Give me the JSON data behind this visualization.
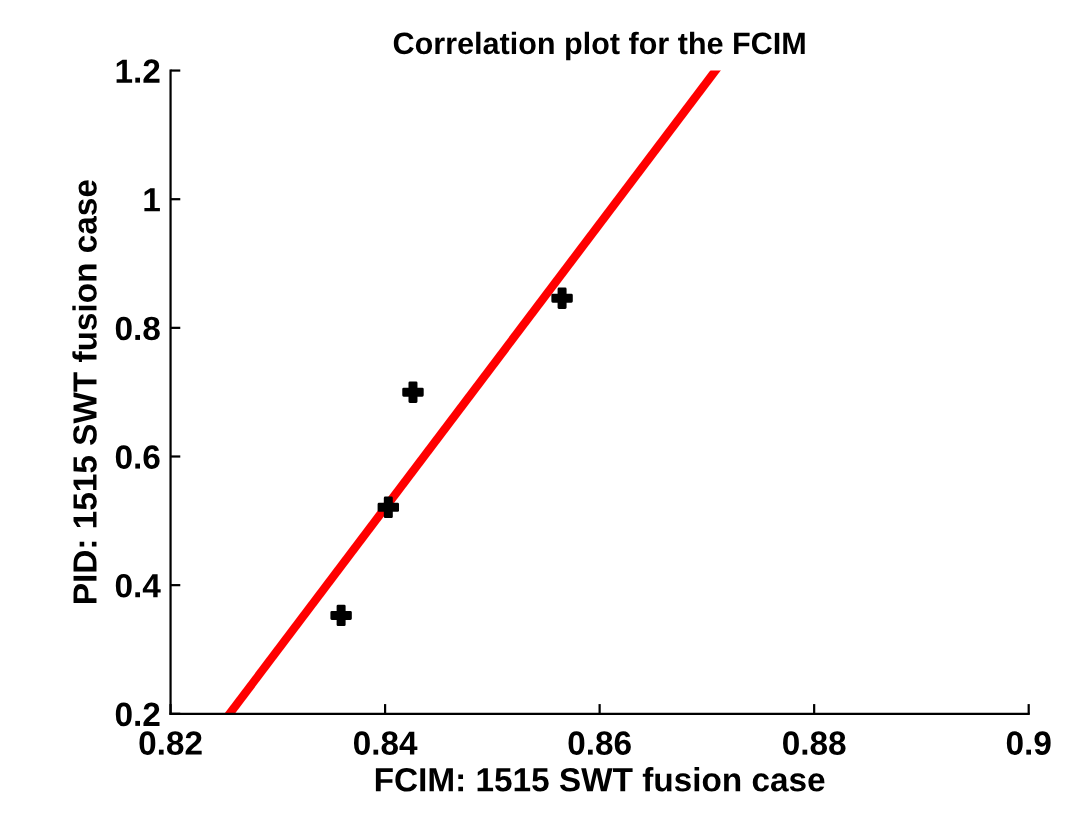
{
  "chart_data": {
    "type": "scatter",
    "title": "Correlation plot for the FCIM",
    "xlabel": "FCIM: 1515 SWT fusion case",
    "ylabel": "PID: 1515 SWT fusion case",
    "series": [
      {
        "color": "#000000",
        "marker": "cross",
        "x": [
          0.8359,
          0.8403,
          0.8426,
          0.8565
        ],
        "values": [
          0.353,
          0.521,
          0.7,
          0.846
        ]
      },
      {
        "type": "line",
        "color": "#ff0000",
        "marker": "none",
        "x": [
          0.8255,
          0.8708
        ],
        "values": [
          0.2,
          1.2
        ]
      }
    ],
    "xlim": [
      0.82,
      0.9
    ],
    "xticks": [
      0.82,
      0.84,
      0.86,
      0.88,
      0.9
    ],
    "ylim": [
      0.2,
      1.2
    ],
    "yticks": [
      0.2,
      0.4,
      0.6,
      0.8,
      1,
      1.2
    ],
    "grid": false,
    "legend": false
  }
}
